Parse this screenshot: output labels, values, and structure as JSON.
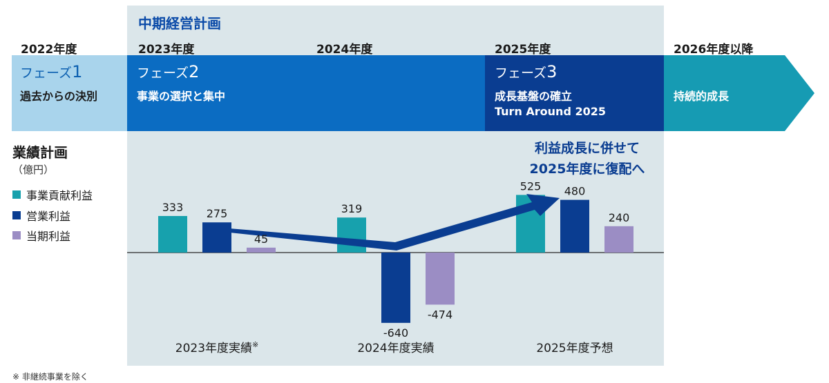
{
  "plan_title": "中期経営計画",
  "years": [
    "2022年度",
    "2023年度",
    "2024年度",
    "2025年度",
    "2026年度以降"
  ],
  "phases": [
    {
      "name": "フェーズ",
      "num": "1",
      "desc1": "過去からの決別",
      "desc2": ""
    },
    {
      "name": "フェーズ",
      "num": "2",
      "desc1": "事業の選択と集中",
      "desc2": ""
    },
    {
      "name": "フェーズ",
      "num": "3",
      "desc1": "成長基盤の確立",
      "desc2": "Turn Around 2025"
    },
    {
      "name": "",
      "num": "",
      "desc1": "持続的成長",
      "desc2": ""
    }
  ],
  "legend": {
    "title": "業績計画",
    "unit": "（億円）",
    "items": [
      "事業貢献利益",
      "営業利益",
      "当期利益"
    ]
  },
  "colors": {
    "phase1": "#a9d4ec",
    "phase2": "#0b6cc2",
    "phase3": "#0a3d91",
    "phase4": "#169bb3",
    "series1": "#17a1ad",
    "series2": "#0a3d91",
    "series3": "#9b8dc4"
  },
  "arrow_label": [
    "利益成長に併せて",
    "2025年度に復配へ"
  ],
  "footnote": "※ 非継続事業を除く",
  "chart_data": {
    "type": "bar",
    "categories": [
      "2023年度実績",
      "2024年度実績",
      "2025年度予想"
    ],
    "category_notes": [
      "※",
      "",
      ""
    ],
    "series": [
      {
        "name": "事業貢献利益",
        "values": [
          333,
          319,
          525
        ]
      },
      {
        "name": "営業利益",
        "values": [
          275,
          -640,
          480
        ]
      },
      {
        "name": "当期利益",
        "values": [
          45,
          -474,
          240
        ]
      }
    ],
    "ylabel": "（億円）"
  }
}
